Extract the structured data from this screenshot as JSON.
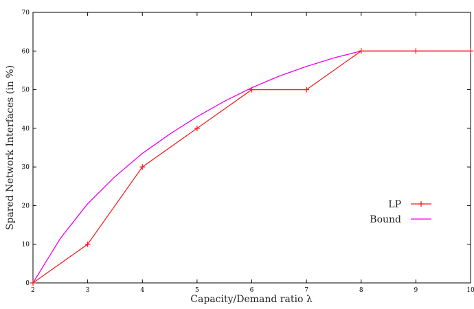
{
  "chart_data": {
    "type": "line",
    "xlabel": "Capacity/Demand ratio λ",
    "ylabel": "Spared Network Interfaces (in %)",
    "xlim": [
      2,
      10
    ],
    "ylim": [
      0,
      70
    ],
    "x_ticks": [
      2,
      3,
      4,
      5,
      6,
      7,
      8,
      9,
      10
    ],
    "y_ticks": [
      0,
      10,
      20,
      30,
      40,
      50,
      60,
      70
    ],
    "grid": false,
    "legend_position": "right",
    "series": [
      {
        "name": "LP",
        "color": "#ee2222",
        "marker": "plus",
        "x": [
          2,
          3,
          4,
          5,
          6,
          7,
          8,
          9,
          10
        ],
        "y": [
          0,
          10,
          30,
          40,
          50,
          50,
          60,
          60,
          60
        ]
      },
      {
        "name": "Bound",
        "color": "#ee00ee",
        "marker": "none",
        "x": [
          2,
          2.5,
          3,
          3.5,
          4,
          4.5,
          5,
          5.5,
          6,
          6.5,
          7,
          7.5,
          8,
          9,
          10
        ],
        "y": [
          0,
          11.5,
          20.5,
          27.5,
          33.5,
          38.5,
          43,
          47,
          50.5,
          53.5,
          56,
          58.2,
          60,
          60,
          60
        ]
      }
    ]
  }
}
